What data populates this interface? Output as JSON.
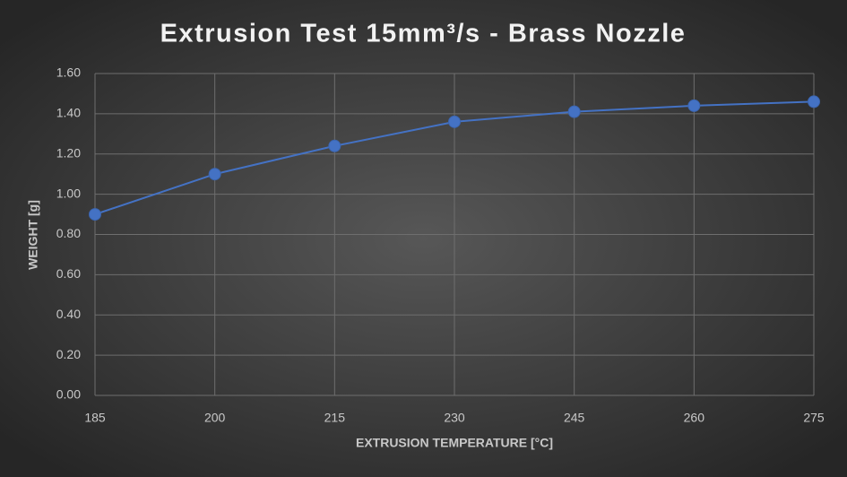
{
  "chart_data": {
    "type": "line",
    "title": "Extrusion Test 15mm³/s - Brass Nozzle",
    "x_label": "EXTRUSION TEMPERATURE [°C]",
    "y_label": "WEIGHT [g]",
    "x": [
      185,
      200,
      215,
      230,
      245,
      260,
      275
    ],
    "series": [
      {
        "color": "#4472c4",
        "values": [
          0.9,
          1.1,
          1.24,
          1.36,
          1.41,
          1.44,
          1.46
        ]
      }
    ],
    "xlim": [
      185,
      275
    ],
    "xticks": [
      185,
      200,
      215,
      230,
      245,
      260,
      275
    ],
    "ylim": [
      0,
      1.6
    ],
    "yticks": [
      {
        "value": 0,
        "label": "0.00"
      },
      {
        "value": 0.2,
        "label": "0.20"
      },
      {
        "value": 0.4,
        "label": "0.40"
      },
      {
        "value": 0.6,
        "label": "0.60"
      },
      {
        "value": 0.8,
        "label": "0.80"
      },
      {
        "value": 1.0,
        "label": "1.00"
      },
      {
        "value": 1.2,
        "label": "1.20"
      },
      {
        "value": 1.4,
        "label": "1.40"
      },
      {
        "value": 1.6,
        "label": "1.60"
      }
    ],
    "grid": true
  }
}
